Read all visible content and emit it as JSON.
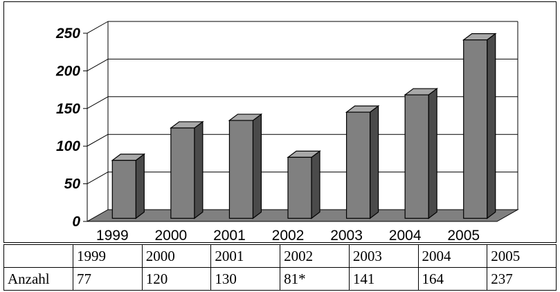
{
  "chart_data": {
    "type": "bar",
    "categories": [
      "1999",
      "2000",
      "2001",
      "2002",
      "2003",
      "2004",
      "2005"
    ],
    "values": [
      77,
      120,
      130,
      81,
      141,
      164,
      237
    ],
    "ylim": [
      0,
      250
    ],
    "yticks": [
      "0",
      "50",
      "100",
      "150",
      "200",
      "250"
    ],
    "grid": true,
    "style": "3d-column",
    "colors": {
      "bar_front": "#808080",
      "bar_side": "#4a4a4a",
      "bar_top": "#a8a8a8",
      "floor": "#808080"
    }
  },
  "table": {
    "header": [
      "",
      "1999",
      "2000",
      "2001",
      "2002",
      "2003",
      "2004",
      "2005"
    ],
    "row_label": "Anzahl",
    "row": [
      "77",
      "120",
      "130",
      "81*",
      "141",
      "164",
      "237"
    ]
  }
}
